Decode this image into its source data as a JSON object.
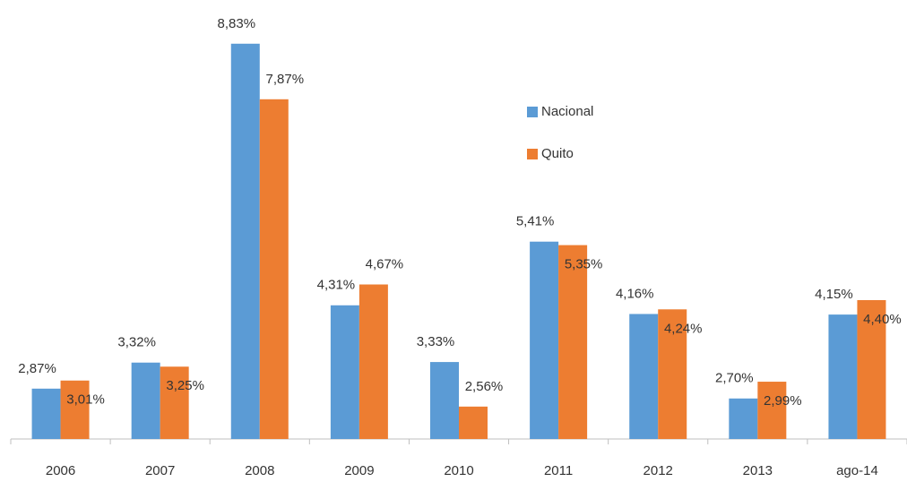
{
  "chart_data": {
    "type": "bar",
    "categories": [
      "2006",
      "2007",
      "2008",
      "2009",
      "2010",
      "2011",
      "2012",
      "2013",
      "ago-14"
    ],
    "series": [
      {
        "name": "Nacional",
        "color": "#5b9bd5",
        "values": [
          2.87,
          3.32,
          8.83,
          4.31,
          3.33,
          5.41,
          4.16,
          2.7,
          4.15
        ],
        "value_labels": [
          "2,87%",
          "3,32%",
          "8,83%",
          "4,31%",
          "3,33%",
          "5,41%",
          "4,16%",
          "2,70%",
          "4,15%"
        ]
      },
      {
        "name": "Quito",
        "color": "#ed7d31",
        "values": [
          3.01,
          3.25,
          7.87,
          4.67,
          2.56,
          5.35,
          4.24,
          2.99,
          4.4
        ],
        "value_labels": [
          "3,01%",
          "3,25%",
          "7,87%",
          "4,67%",
          "2,56%",
          "5,35%",
          "4,24%",
          "2,99%",
          "4,40%"
        ]
      }
    ],
    "ylim": [
      2,
      9.5
    ],
    "legend": "center"
  }
}
